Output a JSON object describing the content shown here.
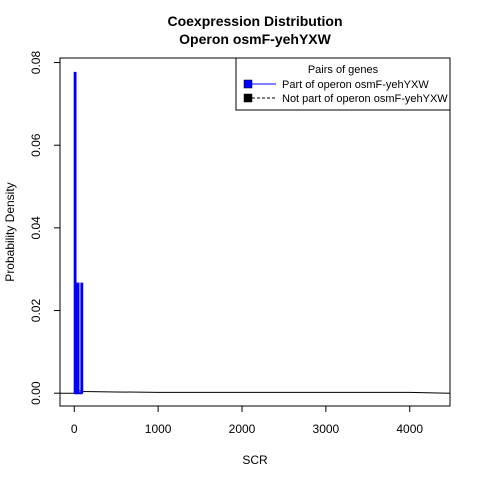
{
  "chart_data": {
    "type": "line",
    "title": "Coexpression Distribution",
    "subtitle": "Operon osmF-yehYXW",
    "xlabel": "SCR",
    "ylabel": "Probability Density",
    "xlim": [
      -170,
      4480
    ],
    "ylim": [
      -0.0031,
      0.0811
    ],
    "xticks": [
      0,
      1000,
      2000,
      3000,
      4000
    ],
    "xtick_labels": [
      "0",
      "1000",
      "2000",
      "3000",
      "4000"
    ],
    "yticks": [
      0.0,
      0.02,
      0.04,
      0.06,
      0.08
    ],
    "ytick_labels": [
      "0.00",
      "0.02",
      "0.04",
      "0.06",
      "0.08"
    ],
    "grid": false,
    "legend": {
      "title": "Pairs of genes",
      "placement": "top-right",
      "entries": [
        {
          "label": "Part of operon osmF-yehYXW",
          "color": "#0000ff",
          "line": "solid"
        },
        {
          "label": "Not part of operon osmF-yehYXW",
          "color": "#000000",
          "line": "dashed"
        }
      ]
    },
    "series": [
      {
        "name": "Part of operon osmF-yehYXW",
        "color": "#0000ff",
        "x": [
          0,
          5,
          5,
          15,
          15,
          25,
          25,
          40,
          40,
          50,
          50,
          85,
          85,
          95,
          95,
          100
        ],
        "y": [
          0.0,
          0.0,
          0.0775,
          0.0775,
          0.0265,
          0.0265,
          0.0,
          0.0,
          0.0265,
          0.0265,
          0.0,
          0.0,
          0.0265,
          0.0265,
          0.0,
          0.0
        ]
      },
      {
        "name": "Not part of operon osmF-yehYXW",
        "color": "#000000",
        "x": [
          -170,
          0,
          20,
          60,
          100,
          500,
          1000,
          2000,
          3000,
          4000,
          4200,
          4480
        ],
        "y": [
          0.0,
          0.0,
          0.0016,
          0.0006,
          0.0004,
          0.0003,
          0.0002,
          0.0002,
          0.0002,
          0.0002,
          0.0001,
          0.0
        ]
      }
    ]
  }
}
